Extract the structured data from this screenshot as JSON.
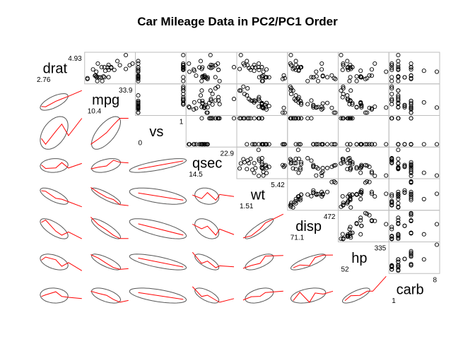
{
  "chart_data": {
    "type": "scatterplot-matrix",
    "title": "Car Mileage Data in PC2/PC1 Order",
    "upper_panel": "scatter",
    "lower_panel": "ellipse with loess smoother",
    "smoother_color": "#ff0000",
    "ellipse_color": "#555555",
    "grid": false,
    "variables": [
      {
        "name": "drat",
        "min": "2.76",
        "max": "4.93",
        "lo": 2.76,
        "hi": 4.93
      },
      {
        "name": "mpg",
        "min": "10.4",
        "max": "33.9",
        "lo": 10.4,
        "hi": 33.9
      },
      {
        "name": "vs",
        "min": "0",
        "max": "1",
        "lo": 0,
        "hi": 1
      },
      {
        "name": "qsec",
        "min": "14.5",
        "max": "22.9",
        "lo": 14.5,
        "hi": 22.9
      },
      {
        "name": "wt",
        "min": "1.51",
        "max": "5.42",
        "lo": 1.51,
        "hi": 5.42
      },
      {
        "name": "disp",
        "min": "71.1",
        "max": "472",
        "lo": 71.1,
        "hi": 472
      },
      {
        "name": "hp",
        "min": "52",
        "max": "335",
        "lo": 52,
        "hi": 335
      },
      {
        "name": "carb",
        "min": "1",
        "max": "8",
        "lo": 1,
        "hi": 8
      }
    ],
    "observations": [
      [
        3.9,
        21.0,
        0,
        16.46,
        2.62,
        160.0,
        110,
        4
      ],
      [
        3.9,
        21.0,
        0,
        17.02,
        2.875,
        160.0,
        110,
        4
      ],
      [
        3.85,
        22.8,
        1,
        18.61,
        2.32,
        108.0,
        93,
        1
      ],
      [
        3.08,
        21.4,
        1,
        19.44,
        3.215,
        258.0,
        110,
        1
      ],
      [
        3.15,
        18.7,
        0,
        17.02,
        3.44,
        360.0,
        175,
        2
      ],
      [
        2.76,
        18.1,
        1,
        20.22,
        3.46,
        225.0,
        105,
        1
      ],
      [
        3.21,
        14.3,
        0,
        15.84,
        3.57,
        360.0,
        245,
        4
      ],
      [
        3.69,
        24.4,
        1,
        20.0,
        3.19,
        146.7,
        62,
        2
      ],
      [
        3.92,
        22.8,
        1,
        22.9,
        3.15,
        140.8,
        95,
        2
      ],
      [
        3.92,
        19.2,
        1,
        18.3,
        3.44,
        167.6,
        123,
        4
      ],
      [
        3.92,
        17.8,
        1,
        18.9,
        3.44,
        167.6,
        123,
        4
      ],
      [
        3.07,
        16.4,
        0,
        17.4,
        4.07,
        275.8,
        180,
        3
      ],
      [
        3.07,
        17.3,
        0,
        17.6,
        3.73,
        275.8,
        180,
        3
      ],
      [
        3.07,
        15.2,
        0,
        18.0,
        3.78,
        275.8,
        180,
        3
      ],
      [
        2.93,
        10.4,
        0,
        17.98,
        5.25,
        472.0,
        205,
        4
      ],
      [
        3.0,
        10.4,
        0,
        17.82,
        5.424,
        460.0,
        215,
        4
      ],
      [
        3.23,
        14.7,
        0,
        17.42,
        5.345,
        440.0,
        230,
        4
      ],
      [
        4.08,
        32.4,
        1,
        19.47,
        2.2,
        78.7,
        66,
        1
      ],
      [
        4.93,
        30.4,
        1,
        18.52,
        1.615,
        75.7,
        52,
        2
      ],
      [
        4.22,
        33.9,
        1,
        19.9,
        1.835,
        71.1,
        65,
        1
      ],
      [
        3.7,
        21.5,
        1,
        20.01,
        2.465,
        120.1,
        97,
        1
      ],
      [
        2.76,
        15.5,
        0,
        16.87,
        3.52,
        318.0,
        150,
        2
      ],
      [
        3.15,
        15.2,
        0,
        17.3,
        3.435,
        304.0,
        150,
        2
      ],
      [
        3.73,
        13.3,
        0,
        15.41,
        3.84,
        350.0,
        245,
        4
      ],
      [
        3.08,
        19.2,
        0,
        17.05,
        3.845,
        400.0,
        175,
        2
      ],
      [
        4.08,
        27.3,
        1,
        18.9,
        1.935,
        79.0,
        66,
        1
      ],
      [
        4.43,
        26.0,
        0,
        16.7,
        2.14,
        120.3,
        91,
        2
      ],
      [
        3.77,
        30.4,
        1,
        16.9,
        1.513,
        95.1,
        113,
        2
      ],
      [
        4.22,
        15.8,
        0,
        14.5,
        3.17,
        351.0,
        264,
        4
      ],
      [
        3.62,
        19.7,
        0,
        15.5,
        2.77,
        145.0,
        175,
        6
      ],
      [
        3.54,
        15.0,
        0,
        14.6,
        3.57,
        301.0,
        335,
        8
      ],
      [
        4.11,
        21.4,
        1,
        18.6,
        2.78,
        121.0,
        109,
        2
      ]
    ]
  }
}
